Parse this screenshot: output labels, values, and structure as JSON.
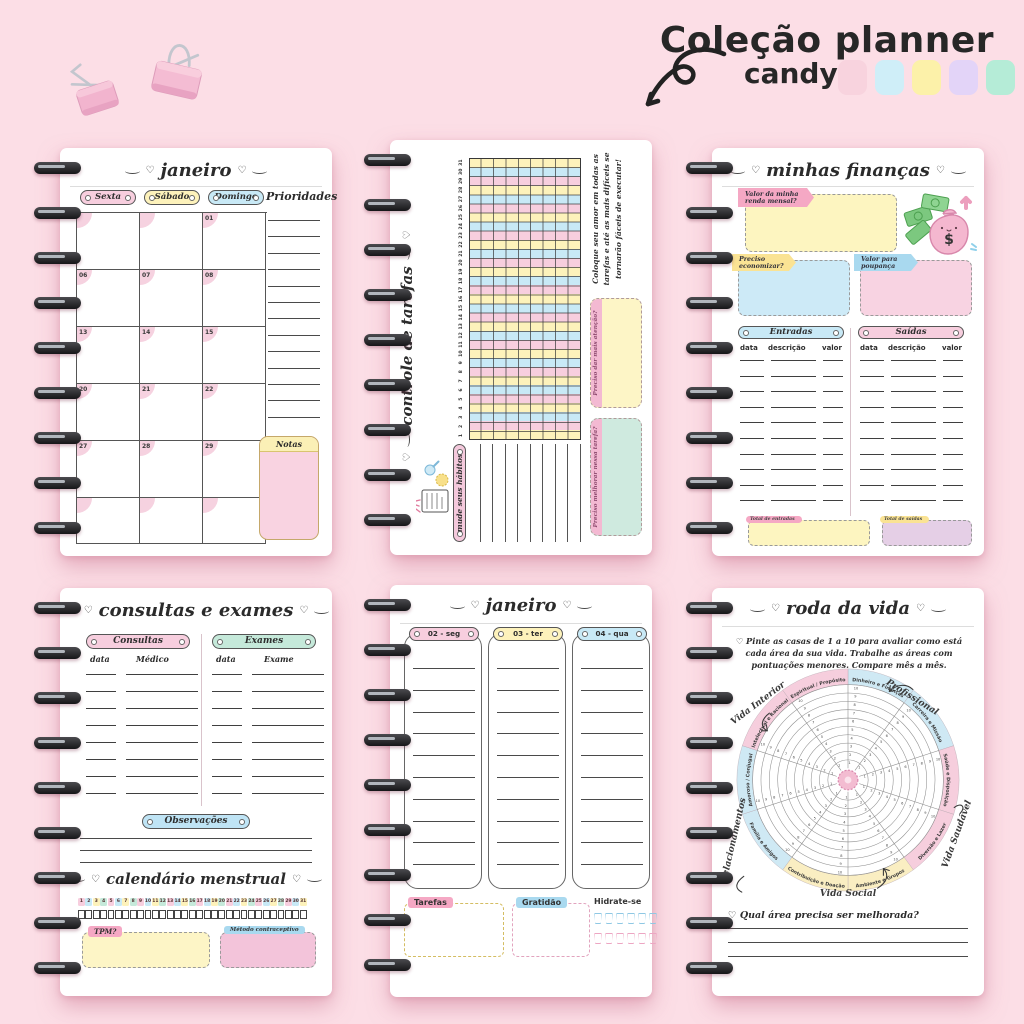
{
  "header": {
    "title": "Coleção planner",
    "subtitle": "candy",
    "swatches": [
      "#f8d3de",
      "#cfeef8",
      "#fcf1a9",
      "#e3d4f8",
      "#b5ecd7"
    ]
  },
  "colors": {
    "background": "#fcdee6",
    "ink": "#2b2b2b",
    "pink": "#f7cede",
    "yellow": "#fdf2bb",
    "blue": "#c8e9f6",
    "mint": "#c5e9da",
    "lavender": "#e2d4f6"
  },
  "monthly_page": {
    "title": "janeiro",
    "day_headers": [
      {
        "label": "Sexta",
        "color": "pink"
      },
      {
        "label": "Sábado",
        "color": "yellow"
      },
      {
        "label": "Domingo",
        "color": "blue"
      }
    ],
    "priorities_label": "Prioridades",
    "priority_lines": 13,
    "weeks": [
      [
        "",
        "",
        "01"
      ],
      [
        "06",
        "07",
        "08"
      ],
      [
        "13",
        "14",
        "15"
      ],
      [
        "20",
        "21",
        "22"
      ],
      [
        "27",
        "28",
        "29"
      ],
      [
        "",
        "",
        ""
      ]
    ],
    "notes_label": "Notas"
  },
  "tracker_page": {
    "title": "controle de tarefas",
    "habits_header": "mude seus hábitos",
    "habit_rows": 9,
    "day_count": 31,
    "column_colors": [
      "yellow",
      "pink",
      "blue"
    ],
    "quote": "Coloque seu amor em todas as tarefas e até as mais difíceis se tornarão fáceis de executar!",
    "box_improve": "Preciso melhorar nessa tarefa?",
    "box_attention": "Preciso dar mais atenção?"
  },
  "finance_page": {
    "title": "minhas finanças",
    "income_tab": "Valor da minha renda mensal?",
    "economize_tab": "Preciso economizar?",
    "savings_tab": "Valor para poupança",
    "in_table": {
      "title": "Entradas",
      "columns": [
        "data",
        "descrição",
        "valor"
      ],
      "rows": 10,
      "total_tab": "Total de entradas"
    },
    "out_table": {
      "title": "Saídas",
      "columns": [
        "data",
        "descrição",
        "valor"
      ],
      "rows": 10,
      "total_tab": "Total de saídas"
    }
  },
  "health_page": {
    "title": "consultas e exames",
    "consultas": {
      "title": "Consultas",
      "columns": [
        "data",
        "Médico"
      ],
      "rows": 8
    },
    "exames": {
      "title": "Exames",
      "columns": [
        "data",
        "Exame"
      ],
      "rows": 8
    },
    "observations_label": "Observações",
    "observation_lines": 3,
    "menstrual_title": "calendário menstrual",
    "day_count": 31,
    "day_colors": [
      "pink",
      "blue",
      "yellow",
      "mint"
    ],
    "tpm_tab": "TPM?",
    "contraceptive_tab": "Método contraceptivo"
  },
  "weekly_page": {
    "title": "janeiro",
    "days": [
      {
        "label": "02 - seg",
        "color": "pink"
      },
      {
        "label": "03 - ter",
        "color": "yellow"
      },
      {
        "label": "04 - qua",
        "color": "blue"
      }
    ],
    "line_count": 10,
    "tasks_label": "Tarefas",
    "gratitude_label": "Gratidão",
    "hydrate_label": "Hidrate-se",
    "water_cups_rows": [
      {
        "color": "blue",
        "count": 6
      },
      {
        "color": "pink",
        "count": 6
      }
    ]
  },
  "wheel_page": {
    "title": "roda da vida",
    "instructions": "Pinte as casas de 1 a 10 para avaliar como está cada área da sua vida. Trabalhe as áreas com pontuações menores. Compare mês a mês.",
    "scale_min": 1,
    "scale_max": 10,
    "segments": [
      {
        "label": "Dinheiro e Finanças",
        "color": "blue"
      },
      {
        "label": "Carreira e Missão",
        "color": "blue"
      },
      {
        "label": "Saúde e Disposição",
        "color": "pink"
      },
      {
        "label": "Diversão e Lazer",
        "color": "pink"
      },
      {
        "label": "Ambiente e Grupos",
        "color": "yellow"
      },
      {
        "label": "Contribuição e Doação",
        "color": "yellow"
      },
      {
        "label": "Família e Amigos",
        "color": "blue"
      },
      {
        "label": "Amoroso / Conjugal",
        "color": "blue"
      },
      {
        "label": "Intelectual e Racional",
        "color": "pink"
      },
      {
        "label": "Espiritual / Propósito",
        "color": "pink"
      }
    ],
    "groups": [
      {
        "label": "Vida Interior"
      },
      {
        "label": "Profissional"
      },
      {
        "label": "Vida Saudável"
      },
      {
        "label": "Vida Social"
      },
      {
        "label": "Relacionamentos"
      }
    ],
    "question": "Qual área precisa ser melhorada?",
    "answer_lines": 3
  }
}
